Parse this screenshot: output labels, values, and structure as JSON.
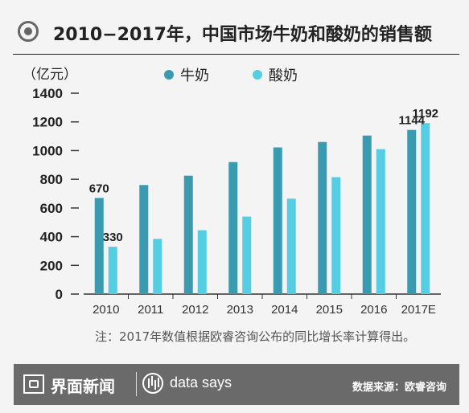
{
  "title": "2010−2017年，中国市场牛奶和酸奶的销售额",
  "footnote": "注：2017年数值根据欧睿咨询公布的同比增长率计算得出。",
  "footer": {
    "brand": "界面新闻",
    "tagline": "data says",
    "source": "数据来源：欧睿咨询"
  },
  "colors": {
    "milk": "#3a9bb0",
    "yogurt": "#55cde2",
    "axis": "#333333"
  },
  "chart_data": {
    "type": "bar",
    "title": "2010−2017年，中国市场牛奶和酸奶的销售额",
    "ylabel": "（亿元）",
    "xlabel": "",
    "categories": [
      "2010",
      "2011",
      "2012",
      "2013",
      "2014",
      "2015",
      "2016",
      "2017E"
    ],
    "series": [
      {
        "name": "牛奶",
        "values": [
          670,
          760,
          825,
          920,
          1022,
          1060,
          1105,
          1144
        ]
      },
      {
        "name": "酸奶",
        "values": [
          330,
          385,
          445,
          540,
          665,
          815,
          1010,
          1192
        ]
      }
    ],
    "data_labels": [
      {
        "series": 0,
        "index": 0,
        "text": "670"
      },
      {
        "series": 1,
        "index": 0,
        "text": "330"
      },
      {
        "series": 0,
        "index": 7,
        "text": "1144"
      },
      {
        "series": 1,
        "index": 7,
        "text": "1192"
      }
    ],
    "ylim": [
      0,
      1400
    ],
    "yticks": [
      0,
      200,
      400,
      600,
      800,
      1000,
      1200,
      1400
    ],
    "legend_position": "top",
    "grid": false
  }
}
